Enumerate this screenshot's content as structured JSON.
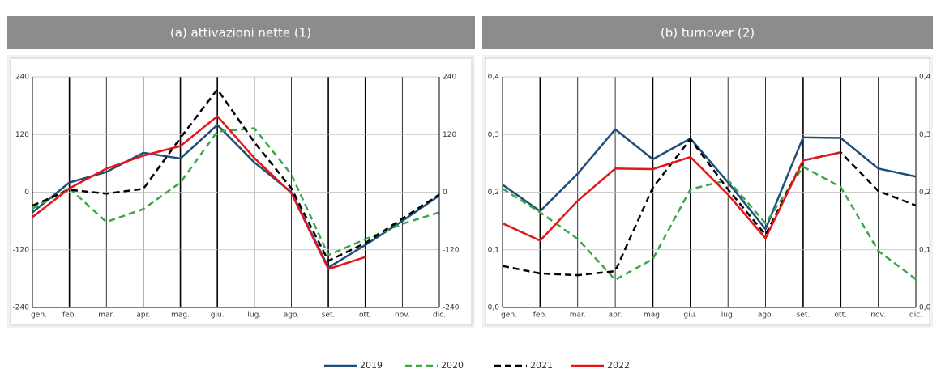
{
  "chart_data": [
    {
      "type": "line",
      "title": "(a) attivazioni nette (1)",
      "categories": [
        "gen.",
        "feb.",
        "mar.",
        "apr.",
        "mag.",
        "giu.",
        "lug.",
        "ago.",
        "set.",
        "ott.",
        "nov.",
        "dic."
      ],
      "series": [
        {
          "name": "2019",
          "color": "#1f4e79",
          "linestyle": "solid",
          "values": [
            -42,
            20,
            42,
            82,
            70,
            140,
            62,
            0,
            -157,
            -110,
            -60,
            -7
          ]
        },
        {
          "name": "2020",
          "color": "#3aa843",
          "linestyle": "dashed",
          "values": [
            -34,
            8,
            -62,
            -35,
            20,
            126,
            133,
            37,
            -131,
            -98,
            -66,
            -42
          ]
        },
        {
          "name": "2021",
          "color": "#000000",
          "linestyle": "dashed",
          "values": [
            -28,
            5,
            -3,
            7,
            113,
            214,
            104,
            8,
            -143,
            -106,
            -55,
            -5
          ]
        },
        {
          "name": "2022",
          "color": "#e3161b",
          "linestyle": "solid",
          "values": [
            -52,
            8,
            49,
            76,
            96,
            158,
            71,
            -2,
            -160,
            -135,
            null,
            null
          ]
        }
      ],
      "ylim": [
        -240,
        240
      ],
      "yticks": [
        -240,
        -120,
        0,
        120,
        240
      ],
      "grid": true
    },
    {
      "type": "line",
      "title": "(b) turnover (2)",
      "categories": [
        "gen.",
        "feb.",
        "mar.",
        "apr.",
        "mag.",
        "giu.",
        "lug.",
        "ago.",
        "set.",
        "ott.",
        "nov.",
        "dic."
      ],
      "series": [
        {
          "name": "2019",
          "color": "#1f4e79",
          "linestyle": "solid",
          "values": [
            0.213,
            0.167,
            0.232,
            0.309,
            0.257,
            0.293,
            0.217,
            0.136,
            0.295,
            0.294,
            0.241,
            0.227
          ]
        },
        {
          "name": "2020",
          "color": "#3aa843",
          "linestyle": "dashed",
          "values": [
            0.206,
            0.165,
            0.119,
            0.048,
            0.084,
            0.205,
            0.221,
            0.146,
            0.244,
            0.209,
            0.098,
            0.049
          ]
        },
        {
          "name": "2021",
          "color": "#000000",
          "linestyle": "dashed",
          "values": [
            0.072,
            0.059,
            0.056,
            0.063,
            0.208,
            0.292,
            0.205,
            0.126,
            0.255,
            0.269,
            0.202,
            0.177
          ]
        },
        {
          "name": "2022",
          "color": "#e3161b",
          "linestyle": "solid",
          "values": [
            0.146,
            0.116,
            0.185,
            0.241,
            0.24,
            0.261,
            0.196,
            0.12,
            0.255,
            0.269,
            null,
            null
          ]
        }
      ],
      "ylim": [
        0,
        0.4
      ],
      "yticks": [
        {
          "value": 0,
          "label": "0,0"
        },
        {
          "value": 0.1,
          "label": "0,1"
        },
        {
          "value": 0.2,
          "label": "0,2"
        },
        {
          "value": 0.3,
          "label": "0,3"
        },
        {
          "value": 0.4,
          "label": "0,4"
        }
      ],
      "grid": true
    }
  ]
}
